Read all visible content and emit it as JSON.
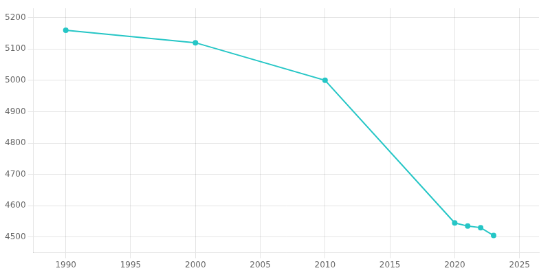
{
  "chart_data": {
    "type": "line",
    "x": [
      1990,
      2000,
      2010,
      2020,
      2021,
      2022,
      2023
    ],
    "values": [
      5160,
      5120,
      5000,
      4545,
      4535,
      4530,
      4505
    ],
    "color": "#26C6C6",
    "marker": "circle",
    "xlim": [
      1987.5,
      2026.5
    ],
    "xticks": [
      1990,
      1995,
      2000,
      2005,
      2010,
      2015,
      2020,
      2025
    ],
    "ylim": [
      4450,
      5230
    ],
    "yticks": [
      4500,
      4600,
      4700,
      4800,
      4900,
      5000,
      5100,
      5200
    ],
    "grid": true
  }
}
